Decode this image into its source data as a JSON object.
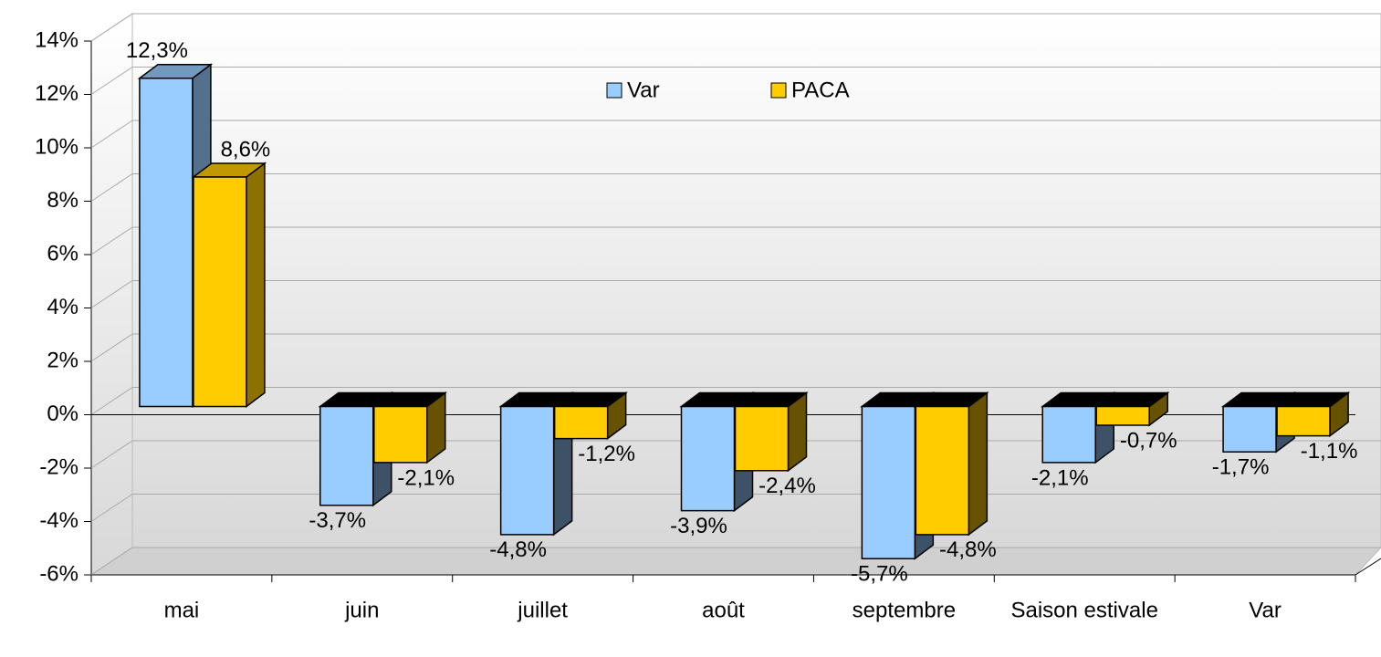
{
  "chart_data": {
    "type": "bar3d",
    "categories": [
      "mai",
      "juin",
      "juillet",
      "août",
      "septembre",
      "Saison estivale",
      "Var"
    ],
    "series": [
      {
        "name": "Var",
        "color": "#99ccff",
        "values": [
          12.3,
          -3.7,
          -4.8,
          -3.9,
          -5.7,
          -2.1,
          -1.7
        ],
        "value_labels": [
          "12,3%",
          "-3,7%",
          "-4,8%",
          "-3,9%",
          "-5,7%",
          "-2,1%",
          "-1,7%"
        ]
      },
      {
        "name": "PACA",
        "color": "#ffcc00",
        "values": [
          8.6,
          -2.1,
          -1.2,
          -2.4,
          -4.8,
          -0.7,
          -1.1
        ],
        "value_labels": [
          "8,6%",
          "-2,1%",
          "-1,2%",
          "-2,4%",
          "-4,8%",
          "-0,7%",
          "-1,1%"
        ]
      }
    ],
    "ylim": [
      -6,
      14
    ],
    "yticks": [
      {
        "value": -6,
        "label": "-6%"
      },
      {
        "value": -4,
        "label": "-4%"
      },
      {
        "value": -2,
        "label": "-2%"
      },
      {
        "value": 0,
        "label": "0%"
      },
      {
        "value": 2,
        "label": "2%"
      },
      {
        "value": 4,
        "label": "4%"
      },
      {
        "value": 6,
        "label": "6%"
      },
      {
        "value": 8,
        "label": "8%"
      },
      {
        "value": 10,
        "label": "10%"
      },
      {
        "value": 12,
        "label": "12%"
      },
      {
        "value": 14,
        "label": "14%"
      }
    ],
    "grid": true
  }
}
